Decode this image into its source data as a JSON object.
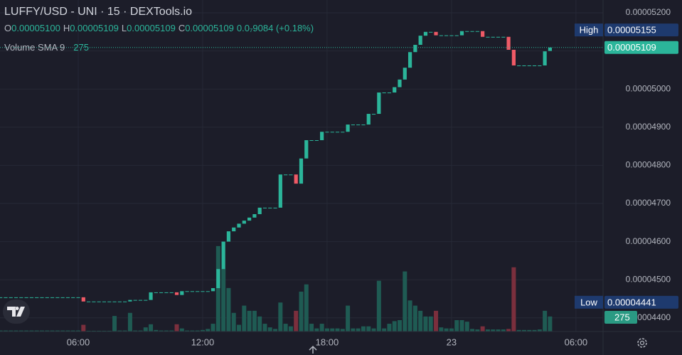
{
  "chart_data": {
    "type": "candlestick",
    "title": "LUFFY/USD - UNI · 15 · DEXTools.io",
    "legend": {
      "o_label": "O",
      "o": "0.00005100",
      "h_label": "H",
      "h": "0.00005109",
      "l_label": "L",
      "l": "0.00005109",
      "c_label": "C",
      "c": "0.00005109",
      "change": "0.0₇9084 (+0.18%)"
    },
    "volume_title": "Volume SMA 9",
    "volume_sma": "275",
    "open": [
      4.454e-05,
      4.454e-05,
      4.454e-05,
      4.454e-05,
      4.454e-05,
      4.454e-05,
      4.454e-05,
      4.454e-05,
      4.454e-05,
      4.454e-05,
      4.454e-05,
      4.454e-05,
      4.454e-05,
      4.454e-05,
      4.454e-05,
      4.454e-05,
      4.454e-05,
      4.443e-05,
      4.443e-05,
      4.443e-05,
      4.443e-05,
      4.443e-05,
      4.443e-05,
      4.443e-05,
      4.443e-05,
      4.443e-05,
      4.447e-05,
      4.447e-05,
      4.447e-05,
      4.447e-05,
      4.467e-05,
      4.467e-05,
      4.467e-05,
      4.467e-05,
      4.467e-05,
      4.46e-05,
      4.47e-05,
      4.47e-05,
      4.47e-05,
      4.47e-05,
      4.47e-05,
      4.47e-05,
      4.478e-05,
      4.528e-05,
      4.6e-05,
      4.627e-05,
      4.637e-05,
      4.647e-05,
      4.655e-05,
      4.663e-05,
      4.672e-05,
      4.689e-05,
      4.689e-05,
      4.689e-05,
      4.689e-05,
      4.776e-05,
      4.776e-05,
      4.776e-05,
      4.752e-05,
      4.818e-05,
      4.866e-05,
      4.866e-05,
      4.866e-05,
      4.888e-05,
      4.888e-05,
      4.888e-05,
      4.888e-05,
      4.888e-05,
      4.907e-05,
      4.907e-05,
      4.907e-05,
      4.907e-05,
      4.935e-05,
      4.935e-05,
      4.991e-05,
      4.991e-05,
      4.991e-05,
      5.005e-05,
      5.025e-05,
      5.056e-05,
      5.097e-05,
      5.116e-05,
      5.14e-05,
      5.15e-05,
      5.15e-05,
      5.141e-05,
      5.141e-05,
      5.141e-05,
      5.141e-05,
      5.141e-05,
      5.152e-05,
      5.152e-05,
      5.152e-05,
      5.152e-05,
      5.137e-05,
      5.137e-05,
      5.137e-05,
      5.137e-05,
      5.137e-05,
      5.103e-05,
      5.062e-05,
      5.062e-05,
      5.062e-05,
      5.062e-05,
      5.062e-05,
      5.062e-05,
      5.1e-05
    ],
    "close": [
      4.454e-05,
      4.454e-05,
      4.454e-05,
      4.454e-05,
      4.454e-05,
      4.454e-05,
      4.454e-05,
      4.454e-05,
      4.454e-05,
      4.454e-05,
      4.454e-05,
      4.454e-05,
      4.454e-05,
      4.454e-05,
      4.454e-05,
      4.454e-05,
      4.443e-05,
      4.443e-05,
      4.443e-05,
      4.443e-05,
      4.443e-05,
      4.443e-05,
      4.443e-05,
      4.443e-05,
      4.443e-05,
      4.447e-05,
      4.447e-05,
      4.447e-05,
      4.447e-05,
      4.467e-05,
      4.467e-05,
      4.467e-05,
      4.467e-05,
      4.467e-05,
      4.46e-05,
      4.47e-05,
      4.47e-05,
      4.47e-05,
      4.47e-05,
      4.47e-05,
      4.47e-05,
      4.478e-05,
      4.528e-05,
      4.6e-05,
      4.627e-05,
      4.637e-05,
      4.647e-05,
      4.655e-05,
      4.663e-05,
      4.672e-05,
      4.689e-05,
      4.689e-05,
      4.689e-05,
      4.689e-05,
      4.776e-05,
      4.776e-05,
      4.776e-05,
      4.752e-05,
      4.818e-05,
      4.866e-05,
      4.866e-05,
      4.866e-05,
      4.888e-05,
      4.888e-05,
      4.888e-05,
      4.888e-05,
      4.888e-05,
      4.907e-05,
      4.907e-05,
      4.907e-05,
      4.907e-05,
      4.935e-05,
      4.935e-05,
      4.991e-05,
      4.991e-05,
      4.991e-05,
      5.005e-05,
      5.025e-05,
      5.056e-05,
      5.097e-05,
      5.116e-05,
      5.14e-05,
      5.15e-05,
      5.15e-05,
      5.141e-05,
      5.141e-05,
      5.141e-05,
      5.141e-05,
      5.141e-05,
      5.152e-05,
      5.152e-05,
      5.152e-05,
      5.152e-05,
      5.137e-05,
      5.137e-05,
      5.137e-05,
      5.137e-05,
      5.137e-05,
      5.103e-05,
      5.062e-05,
      5.062e-05,
      5.062e-05,
      5.062e-05,
      5.062e-05,
      5.062e-05,
      5.099e-05,
      5.109e-05
    ],
    "volume": [
      20,
      20,
      20,
      20,
      20,
      20,
      20,
      20,
      20,
      20,
      20,
      20,
      20,
      20,
      20,
      20,
      130,
      15,
      15,
      15,
      15,
      15,
      300,
      20,
      20,
      360,
      20,
      20,
      80,
      140,
      30,
      20,
      20,
      20,
      140,
      60,
      20,
      20,
      20,
      30,
      50,
      150,
      1650,
      1210,
      840,
      360,
      130,
      500,
      400,
      400,
      290,
      150,
      80,
      50,
      560,
      150,
      100,
      400,
      770,
      910,
      150,
      60,
      150,
      60,
      60,
      60,
      50,
      500,
      60,
      60,
      100,
      100,
      60,
      980,
      60,
      150,
      200,
      220,
      1160,
      600,
      500,
      400,
      290,
      290,
      400,
      80,
      60,
      60,
      220,
      220,
      190,
      50,
      40,
      100,
      40,
      40,
      40,
      40,
      50,
      1240,
      30,
      30,
      30,
      30,
      40,
      400,
      290
    ],
    "up_color": "#2bb59a",
    "down_color": "#ef5a66",
    "volume_up_color": "#1f5b53",
    "volume_down_color": "#7b2f3d",
    "xlim": [
      -0.09,
      116.23
    ],
    "xticks": [
      {
        "value": 15,
        "label": "06:00"
      },
      {
        "value": 39,
        "label": "12:00"
      },
      {
        "value": 63,
        "label": "18:00"
      },
      {
        "value": 87,
        "label": "23"
      },
      {
        "value": 111,
        "label": "06:00"
      }
    ],
    "ylim": [
      4.3642e-05,
      5.2336e-05
    ],
    "yticks": [
      {
        "value": 5.2e-05,
        "label": "0.00005200"
      },
      {
        "value": 5.1e-05,
        "label": "0.00005100"
      },
      {
        "value": 5e-05,
        "label": "0.00005000"
      },
      {
        "value": 4.9e-05,
        "label": "0.00004900"
      },
      {
        "value": 4.8e-05,
        "label": "0.00004800"
      },
      {
        "value": 4.7e-05,
        "label": "0.00004700"
      },
      {
        "value": 4.6e-05,
        "label": "0.00004600"
      },
      {
        "value": 4.5e-05,
        "label": "0.00004500"
      },
      {
        "value": 4.4e-05,
        "label": "0.00004400"
      }
    ],
    "volume_ylim": [
      0,
      6400
    ],
    "high": {
      "name": "High",
      "value": 5.155e-05,
      "label": "0.00005155"
    },
    "low": {
      "name": "Low",
      "value": 4.441e-05,
      "label": "0.00004441"
    },
    "last": {
      "value": 5.109e-05,
      "label": "0.00005109"
    },
    "volume_last": {
      "value": 275,
      "label": "275"
    },
    "grid": true
  }
}
